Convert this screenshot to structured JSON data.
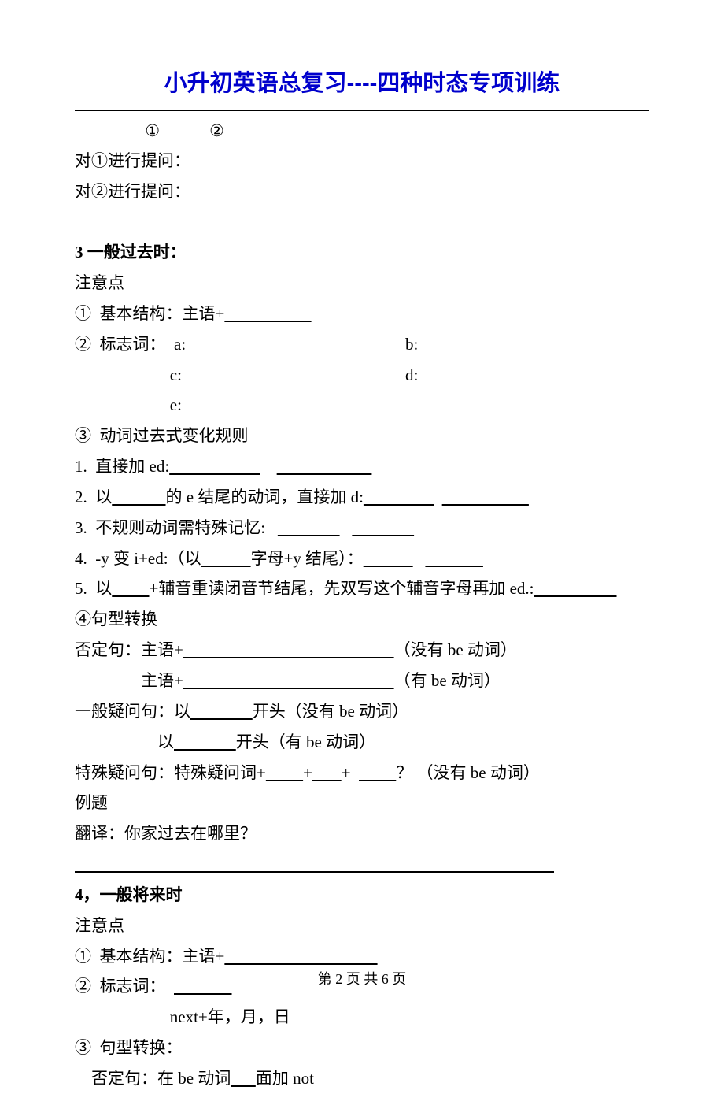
{
  "title": "小升初英语总复习----四种时态专项训练",
  "top": {
    "markers": "                 ①            ②",
    "q1": "对①进行提问：",
    "q2": "对②进行提问："
  },
  "sec3": {
    "heading": "3 一般过去时：",
    "sub": "注意点",
    "l1a": "①  基本结构：主语+",
    "l1u": "                     ",
    "l2a": "②  标志词：  a:",
    "l2b": "b:",
    "l2c": "                       c:",
    "l2d": "d:",
    "l2e": "                       e:",
    "l3": "③  动词过去式变化规则",
    "r1a": "1.  直接加 ed:",
    "r1u1": "                      ",
    "r1s": "    ",
    "r1u2": "                       ",
    "r2a": "2.  以",
    "r2u1": "             ",
    "r2b": "的 e 结尾的动词，直接加 d:",
    "r2u2": "                 ",
    "r2s": "  ",
    "r2u3": "                     ",
    "r3a": "3.  不规则动词需特殊记忆:   ",
    "r3u1": "               ",
    "r3s": "   ",
    "r3u2": "               ",
    "r4a": "4.  -y 变 i+ed:（以",
    "r4u1": "            ",
    "r4b": "字母+y 结尾）：",
    "r4u2": "            ",
    "r4s": "   ",
    "r4u3": "              ",
    "r5a": "5.  以",
    "r5u1": "         ",
    "r5b": "+辅音重读闭音节结尾，先双写这个辅音字母再加 ed.:",
    "r5u2": "                    ",
    "s1": "④句型转换",
    "s2a": "否定句：主语+",
    "s2u": "                                                   ",
    "s2b": "（没有 be 动词）",
    "s3a": "                主语+",
    "s3u": "                                                   ",
    "s3b": "（有 be 动词）",
    "s4a": "一般疑问句：以",
    "s4u": "               ",
    "s4b": "开头（没有 be 动词）",
    "s5a": "                    以",
    "s5u": "               ",
    "s5b": "开头（有 be 动词）",
    "s6a": "特殊疑问句：特殊疑问词+",
    "s6u1": "         ",
    "s6p1": "+",
    "s6u2": "       ",
    "s6p2": "+  ",
    "s6u3": "         ",
    "s6b": "？ （没有 be 动词）",
    "ex1": "例题",
    "ex2": "翻译：你家过去在哪里？",
    "exline": "                                                                                                                    "
  },
  "sec4": {
    "heading": "4，一般将来时",
    "sub": "注意点",
    "l1a": "①  基本结构：主语+",
    "l1u": "                                     ",
    "l2a": "②  标志词：  ",
    "l2u": "              ",
    "l2b": "                       next+年，月，日",
    "l3": "③  句型转换：",
    "l4a": "    否定句：在 be 动词",
    "l4u": "      ",
    "l4b": "面加 not"
  },
  "pager": "第 2 页 共 6 页"
}
